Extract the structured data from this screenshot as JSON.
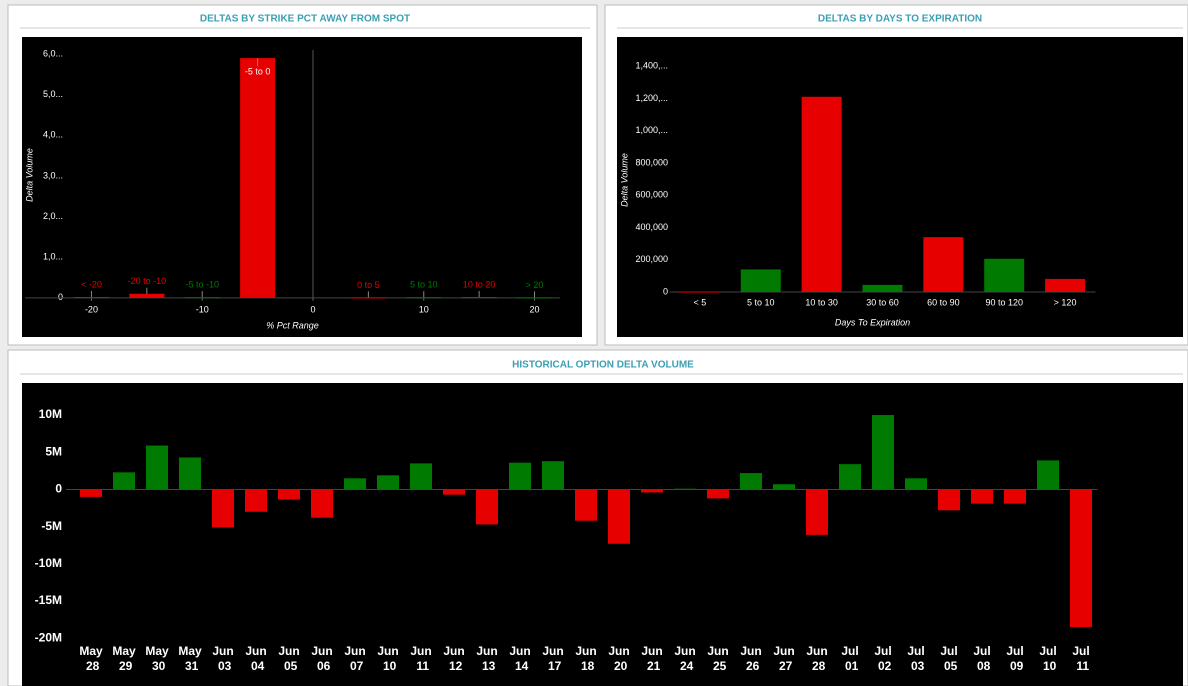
{
  "chart_data": [
    {
      "type": "bar",
      "title": "DELTAS BY STRIKE PCT AWAY FROM SPOT",
      "x_label": "% Pct Range",
      "y_label": "Delta Volume",
      "categories": [
        "< -20",
        "-20 to -10",
        "-5 to -10",
        "-5 to 0",
        "0 to 5",
        "5 to 10",
        "10 to 20",
        "> 20"
      ],
      "x": [
        -20,
        -15,
        -10,
        -5,
        5,
        10,
        15,
        20
      ],
      "values": [
        20000,
        100000,
        15000,
        5900000,
        10000,
        15000,
        20000,
        10000
      ],
      "colors": [
        "#e60000",
        "#e60000",
        "#007a00",
        "#e60000",
        "#e60000",
        "#007a00",
        "#e60000",
        "#007a00"
      ],
      "xlim": [
        -26,
        22.3
      ],
      "xticks": [
        -20,
        -10,
        0,
        10,
        20
      ],
      "ylim": [
        -300000,
        6100000
      ],
      "yticks": [
        0,
        {
          "value": 1000000,
          "label": "1,0..."
        },
        {
          "value": 2000000,
          "label": "2,0..."
        },
        {
          "value": 3000000,
          "label": "3,0..."
        },
        {
          "value": 4000000,
          "label": "4,0..."
        },
        {
          "value": 5000000,
          "label": "5,0..."
        },
        {
          "value": 6000000,
          "label": "6,0..."
        }
      ]
    },
    {
      "type": "bar",
      "title": "DELTAS BY DAYS TO EXPIRATION",
      "x_label": "Days To Expiration",
      "y_label": "Delta Volume",
      "categories": [
        "< 5",
        "5 to 10",
        "10 to 30",
        "30 to 60",
        "60 to 90",
        "90 to 120",
        "> 120"
      ],
      "values": [
        3000,
        140000,
        1210000,
        44000,
        340000,
        206000,
        81000
      ],
      "colors": [
        "#e60000",
        "#007a00",
        "#e60000",
        "#007a00",
        "#e60000",
        "#007a00",
        "#e60000"
      ],
      "ylim": [
        0,
        1500000
      ],
      "yticks": [
        0,
        {
          "value": 200000,
          "label": "200,000"
        },
        {
          "value": 400000,
          "label": "400,000"
        },
        {
          "value": 600000,
          "label": "600,000"
        },
        {
          "value": 800000,
          "label": "800,000"
        },
        {
          "value": 1000000,
          "label": "1,000,..."
        },
        {
          "value": 1200000,
          "label": "1,200,..."
        },
        {
          "value": 1400000,
          "label": "1,400,..."
        }
      ]
    },
    {
      "type": "bar",
      "title": "HISTORICAL OPTION DELTA VOLUME",
      "categories": [
        "May 28",
        "May 29",
        "May 30",
        "May 31",
        "Jun 03",
        "Jun 04",
        "Jun 05",
        "Jun 06",
        "Jun 07",
        "Jun 10",
        "Jun 11",
        "Jun 12",
        "Jun 13",
        "Jun 14",
        "Jun 17",
        "Jun 18",
        "Jun 20",
        "Jun 21",
        "Jun 24",
        "Jun 25",
        "Jun 26",
        "Jun 27",
        "Jun 28",
        "Jul 01",
        "Jul 02",
        "Jul 03",
        "Jul 05",
        "Jul 08",
        "Jul 09",
        "Jul 10",
        "Jul 11"
      ],
      "values": [
        -1000000,
        2300000,
        5900000,
        4300000,
        -5100000,
        -3000000,
        -1350000,
        -3800000,
        1500000,
        1900000,
        3500000,
        -700000,
        -4700000,
        3600000,
        3800000,
        -4200000,
        -7300000,
        -400000,
        100000,
        -1200000,
        2200000,
        700000,
        -6100000,
        3400000,
        10000000,
        1500000,
        -2800000,
        -1900000,
        -1900000,
        3900000,
        -18500000
      ],
      "positive_color": "#007a00",
      "negative_color": "#e60000",
      "ylim": [
        -20500000,
        13500000
      ],
      "yticks": [
        {
          "value": -20000000,
          "label": "-20M"
        },
        {
          "value": -15000000,
          "label": "-15M"
        },
        {
          "value": -10000000,
          "label": "-10M"
        },
        {
          "value": -5000000,
          "label": "-5M"
        },
        0,
        {
          "value": 5000000,
          "label": "5M"
        },
        {
          "value": 10000000,
          "label": "10M"
        }
      ]
    }
  ]
}
